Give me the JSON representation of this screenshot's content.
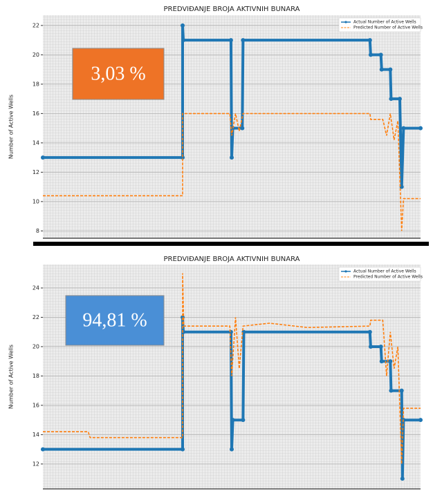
{
  "chart_data": [
    {
      "type": "line",
      "title": "PREDVIĐANJE BROJA AKTIVNIH BUNARA",
      "ylabel": "Number of Active Wells",
      "annotation": {
        "text": "3,03 %",
        "color": "#ee7326"
      },
      "xlim": [
        0,
        100
      ],
      "ylim": [
        7.5,
        22.7
      ],
      "yticks": [
        8,
        10,
        12,
        14,
        16,
        18,
        20,
        22
      ],
      "grid": true,
      "legend": "upper right",
      "series": [
        {
          "name": "Actual Number of Active Wells",
          "color": "#1f77b4",
          "style": "solid",
          "x": [
            0,
            37,
            37,
            37.2,
            49.8,
            50,
            50.3,
            52.8,
            53,
            86.6,
            86.8,
            89.5,
            89.7,
            92,
            92.2,
            94.5,
            95,
            95.5,
            100
          ],
          "values": [
            13,
            13,
            22,
            21,
            21,
            13,
            15,
            15,
            21,
            21,
            20,
            20,
            19,
            19,
            17,
            17,
            11,
            15,
            15
          ]
        },
        {
          "name": "Predicted Number of Active Wells",
          "color": "#ff7f0e",
          "style": "dashed",
          "x": [
            0,
            37,
            37,
            49.5,
            50,
            51,
            52,
            53,
            86.6,
            86.8,
            90,
            91,
            92,
            93,
            94,
            95,
            95.5,
            100
          ],
          "values": [
            10.4,
            10.4,
            16,
            16,
            14.5,
            16,
            14.8,
            16,
            16,
            15.6,
            15.6,
            14.5,
            16,
            14.2,
            15.5,
            8,
            10.2,
            10.2
          ]
        }
      ]
    },
    {
      "type": "line",
      "title": "PREDVIĐANJE BROJA AKTIVNIH BUNARA",
      "ylabel": "Number of Active Wells",
      "annotation": {
        "text": "94,81 %",
        "color": "#4a8fd6"
      },
      "xlim": [
        0,
        100
      ],
      "ylim": [
        10.3,
        25.6
      ],
      "yticks": [
        12,
        14,
        16,
        18,
        20,
        22,
        24
      ],
      "grid": true,
      "legend": "upper right",
      "series": [
        {
          "name": "Actual Number of Active Wells",
          "color": "#1f77b4",
          "style": "solid",
          "x": [
            0,
            37,
            37,
            37.2,
            49.8,
            50,
            50.3,
            53,
            53.2,
            86.6,
            86.8,
            89.5,
            89.7,
            92,
            92.2,
            95,
            95.2,
            95.5,
            100
          ],
          "values": [
            13,
            13,
            22,
            21,
            21,
            13,
            15,
            15,
            21,
            21,
            20,
            20,
            19,
            19,
            17,
            17,
            11,
            15,
            15
          ]
        },
        {
          "name": "Predicted Number of Active Wells",
          "color": "#ff7f0e",
          "style": "dashed",
          "x": [
            0,
            12,
            12.5,
            37,
            37,
            37.3,
            49.5,
            50,
            51,
            52,
            53,
            60,
            70,
            86.6,
            86.8,
            90,
            91,
            92,
            93,
            94,
            95,
            95.5,
            100
          ],
          "values": [
            14.2,
            14.2,
            13.8,
            13.8,
            25,
            21.4,
            21.4,
            18,
            22,
            18.5,
            21.4,
            21.6,
            21.3,
            21.4,
            21.8,
            21.8,
            18,
            21,
            18.5,
            20,
            12,
            15.8,
            15.8
          ]
        }
      ]
    }
  ]
}
